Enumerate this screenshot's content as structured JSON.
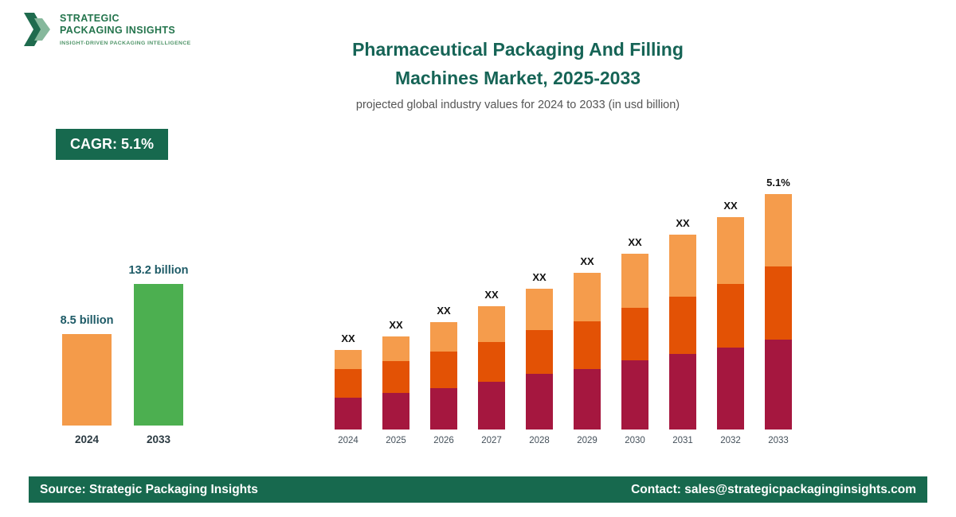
{
  "brand": {
    "name_line1": "STRATEGIC",
    "name_line2": "PACKAGING INSIGHTS",
    "tagline": "INSIGHT-DRIVEN PACKAGING INTELLIGENCE"
  },
  "header": {
    "title_line1": "Pharmaceutical Packaging And Filling",
    "title_line2": "Machines Market, 2025-2033",
    "subtitle": "projected global industry values for 2024 to 2033 (in usd billion)"
  },
  "cagr_badge": "CAGR: 5.1%",
  "footer": {
    "source": "Source: Strategic Packaging Insights",
    "contact": "Contact: sales@strategicpackaginginsights.com"
  },
  "colors": {
    "brand_green": "#23744c",
    "accent_dark_green": "#17694e",
    "title_teal": "#166456",
    "bar_2024_orange": "#f49b4a",
    "bar_2033_green": "#4caf50",
    "stack_bottom_crimson": "#a5173f",
    "stack_middle_orange_red": "#e35205",
    "stack_top_light_orange": "#f59c4c"
  },
  "chart_data": [
    {
      "type": "bar",
      "title": "Market size comparison 2024 vs 2033 (USD billion)",
      "categories": [
        "2024",
        "2033"
      ],
      "values": [
        8.5,
        13.2
      ],
      "value_labels": [
        "8.5 billion",
        "13.2 billion"
      ],
      "colors": [
        "#f49b4a",
        "#4caf50"
      ],
      "ylim": [
        0,
        14
      ],
      "grid": false,
      "legend": "none"
    },
    {
      "type": "bar",
      "subtype": "stacked",
      "title": "Projected global industry values 2024 to 2033",
      "categories": [
        "2024",
        "2025",
        "2026",
        "2027",
        "2028",
        "2029",
        "2030",
        "2031",
        "2032",
        "2033"
      ],
      "bar_top_labels": [
        "XX",
        "XX",
        "XX",
        "XX",
        "XX",
        "XX",
        "XX",
        "XX",
        "XX",
        "5.1%"
      ],
      "series": [
        {
          "name": "segment-bottom",
          "color": "#a5173f",
          "values": [
            40,
            46,
            52,
            60,
            70,
            76,
            87,
            95,
            103,
            113
          ]
        },
        {
          "name": "segment-middle",
          "color": "#e35205",
          "values": [
            36,
            40,
            46,
            50,
            55,
            60,
            66,
            72,
            80,
            92
          ]
        },
        {
          "name": "segment-top",
          "color": "#f59c4c",
          "values": [
            24,
            31,
            37,
            45,
            52,
            61,
            68,
            78,
            84,
            91
          ]
        }
      ],
      "units": "relative heights; segment values shown as XX (unlabeled) in source",
      "grid": false,
      "legend": "none"
    }
  ]
}
